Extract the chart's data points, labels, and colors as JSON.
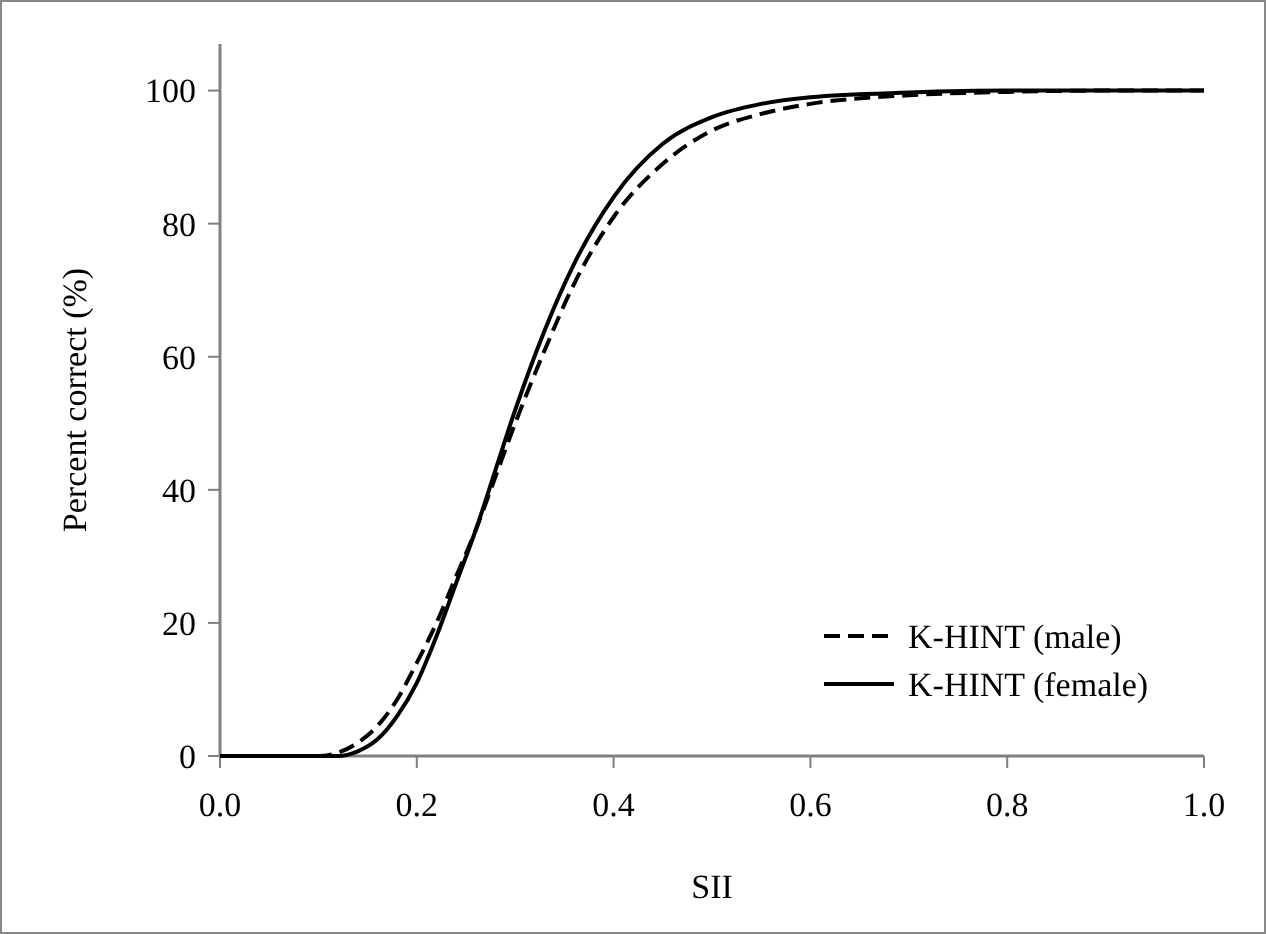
{
  "chart_data": {
    "type": "line",
    "xlabel": "SII",
    "ylabel": "Percent correct (%)",
    "x": [
      0,
      0.05,
      0.1,
      0.12,
      0.14,
      0.16,
      0.18,
      0.2,
      0.22,
      0.24,
      0.26,
      0.28,
      0.3,
      0.33,
      0.36,
      0.4,
      0.45,
      0.5,
      0.55,
      0.6,
      0.7,
      0.8,
      0.9,
      1.0
    ],
    "series": [
      {
        "name": "K-HINT (male)",
        "color": "#000000",
        "line_style": "dashed",
        "values": [
          0,
          0,
          0,
          0.5,
          2,
          4.5,
          8.5,
          14,
          20,
          27,
          34,
          42,
          50,
          61,
          71,
          81,
          89,
          94,
          96.5,
          98,
          99.3,
          99.8,
          100,
          100
        ]
      },
      {
        "name": "K-HINT (female)",
        "color": "#000000",
        "line_style": "solid",
        "values": [
          0,
          0,
          0,
          0,
          0.7,
          2.5,
          6,
          11,
          18,
          26,
          34,
          43,
          52,
          64,
          74,
          84,
          92,
          96,
          98,
          99,
          99.7,
          100,
          100,
          100
        ]
      }
    ],
    "xlim": [
      0,
      1
    ],
    "xticks": [
      {
        "value": 0,
        "label": "0.0"
      },
      0.2,
      0.4,
      0.6,
      0.8,
      {
        "value": 1,
        "label": "1.0"
      }
    ],
    "ylim": [
      0,
      107
    ],
    "yticks": [
      0,
      20,
      40,
      60,
      80,
      100
    ],
    "grid": false,
    "legend": "bottom right"
  }
}
